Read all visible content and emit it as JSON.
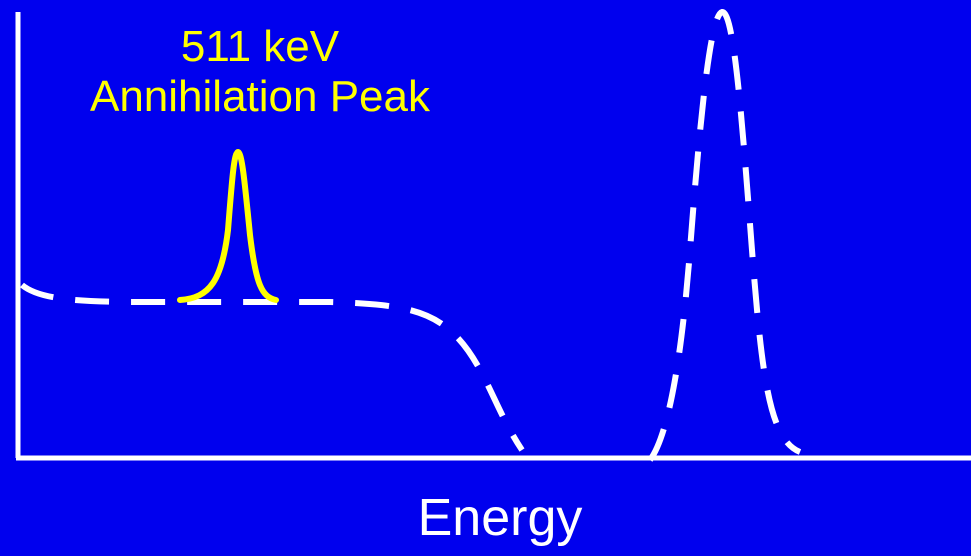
{
  "annotation": {
    "line1": "511 keV",
    "line2": "Annihilation Peak"
  },
  "axis": {
    "x_label": "Energy"
  },
  "colors": {
    "background": "#0000ee",
    "axis": "#ffffff",
    "dashed_spectrum": "#ffffff",
    "annihilation_peak": "#ffff00"
  }
}
